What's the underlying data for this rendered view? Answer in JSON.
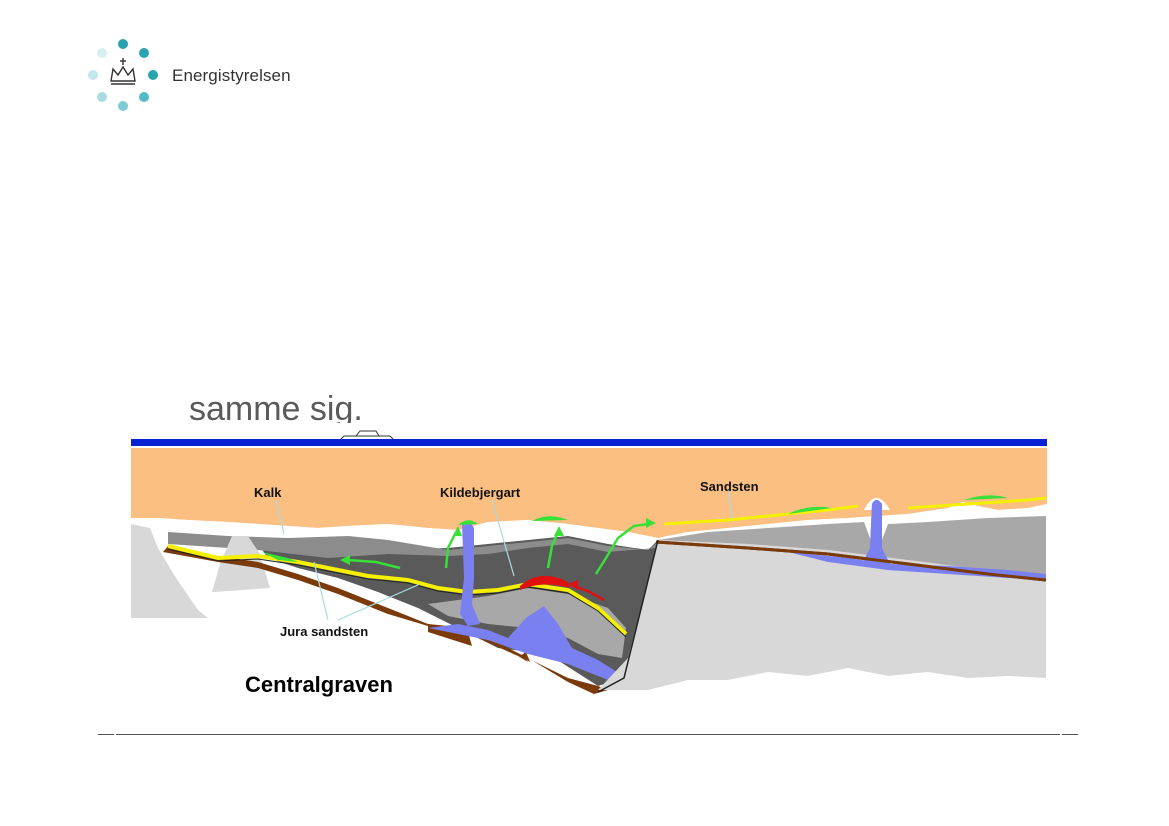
{
  "brand": {
    "name": "Energistyrelsen",
    "logo_icon": "crown-with-dot-ring-icon",
    "colors": {
      "teal": "#2aa3b0",
      "light_teal": "#a9dbe2"
    }
  },
  "slide": {
    "fragment_text": "samme sig."
  },
  "diagram": {
    "labels": {
      "kalk": "Kalk",
      "kildebjergart": "Kildebjergart",
      "sandsten": "Sandsten",
      "jura_sandsten": "Jura sandsten",
      "centralgraven": "Centralgraven"
    },
    "colors": {
      "sea": "#0a22d6",
      "chalk": "#fbbf82",
      "basement": "#d8d8d8",
      "dark_shale": "#5a5a5a",
      "mid_shale": "#8c8c8c",
      "light_shale": "#a8a8a8",
      "sand": "#f5f000",
      "salt": "#7a80f0",
      "source_rock": "#e01010",
      "hydrocarbon": "#38e038",
      "fault_brown": "#7a3a0a"
    }
  }
}
